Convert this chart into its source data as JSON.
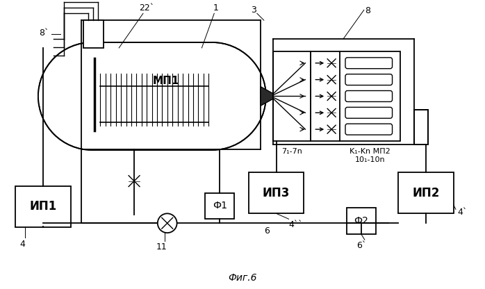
{
  "background_color": "#ffffff",
  "title": "Фиг.6",
  "title_fontsize": 10,
  "labels": {
    "MP1": "МП1",
    "IP1": "ИП1",
    "IP2": "ИП2",
    "IP3": "ИП3",
    "F1": "Ф1",
    "F2": "Ф2",
    "num_1": "1",
    "num_3": "3",
    "num_4": "4",
    "num_4p": "4`",
    "num_4pp": "4``",
    "num_6": "6",
    "num_6p": "6`",
    "num_7": "7₁-7n",
    "num_8": "8",
    "num_8p": "8`",
    "num_11": "11",
    "num_22p": "22`",
    "num_K": "K₁-Kn МП2",
    "num_10": "10₁-10n"
  }
}
